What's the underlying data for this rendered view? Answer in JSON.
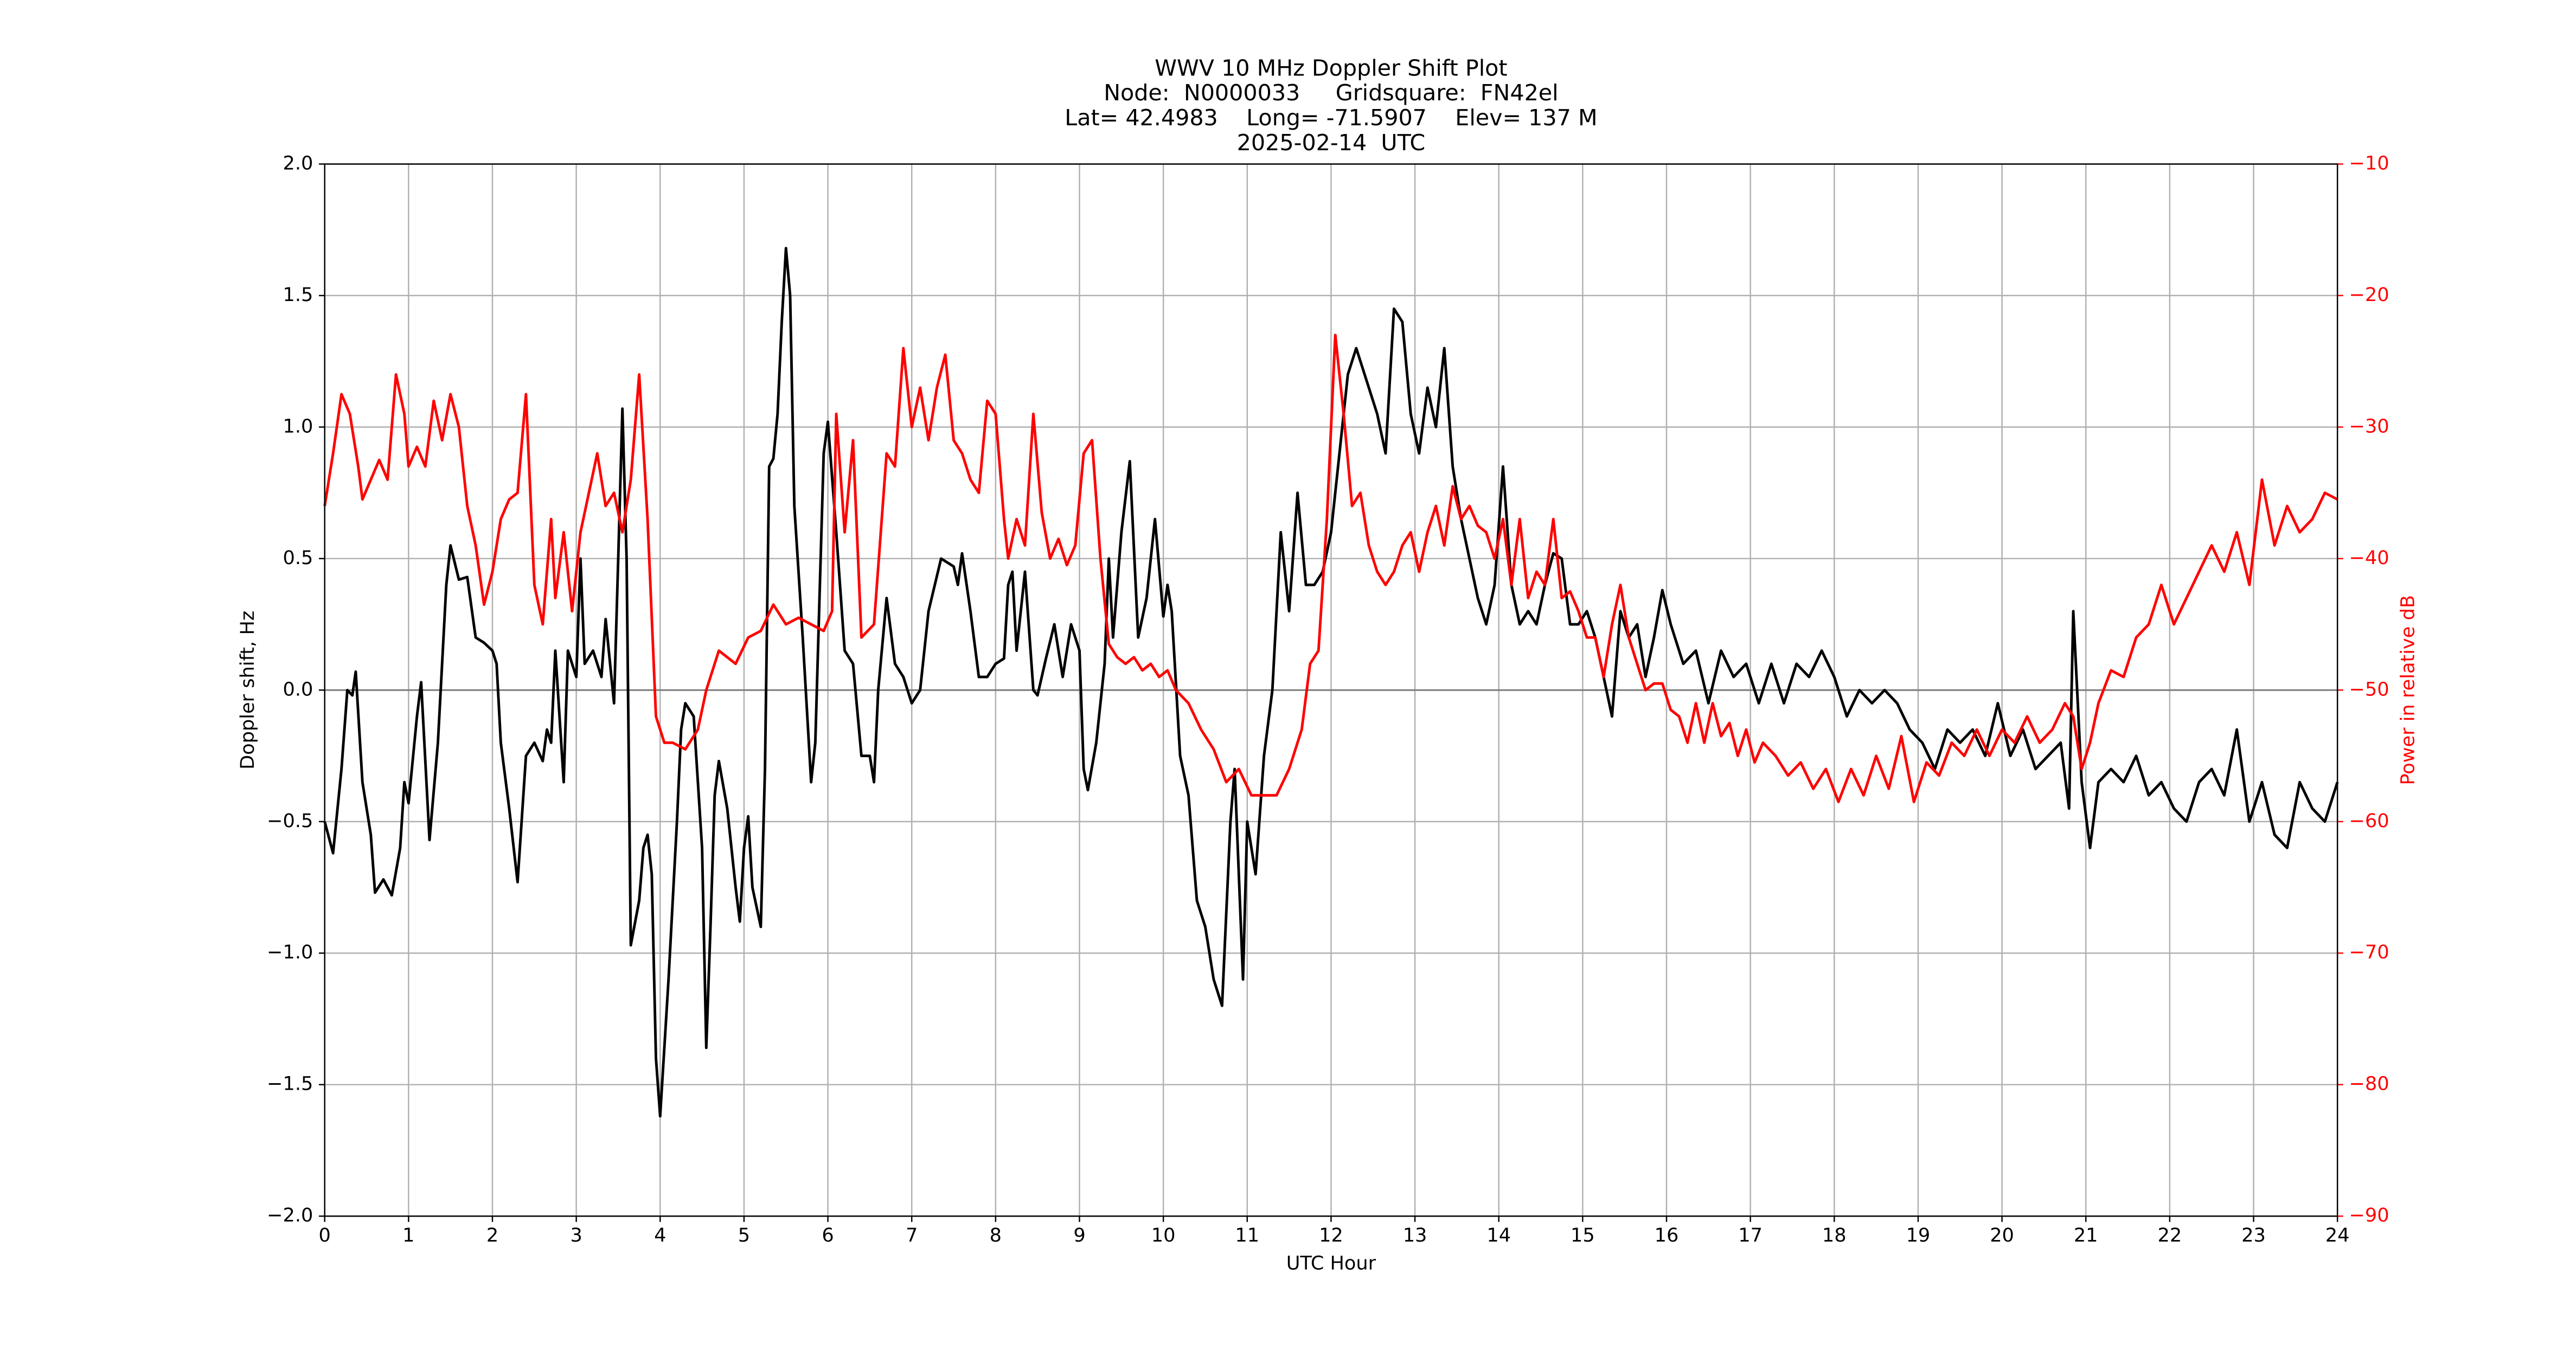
{
  "chart_data": {
    "type": "line",
    "title": [
      "WWV 10 MHz Doppler Shift Plot",
      "Node:  N0000033     Gridsquare:  FN42el",
      "Lat= 42.4983    Long= -71.5907    Elev= 137 M",
      "2025-02-14  UTC"
    ],
    "xlabel": "UTC Hour",
    "ylabel": "Doppler shift, Hz",
    "y2label": "Power in relative dB",
    "xlim": [
      0,
      24
    ],
    "xticks": [
      0,
      1,
      2,
      3,
      4,
      5,
      6,
      7,
      8,
      9,
      10,
      11,
      12,
      13,
      14,
      15,
      16,
      17,
      18,
      19,
      20,
      21,
      22,
      23,
      24
    ],
    "ylim": [
      -2.0,
      2.0
    ],
    "yticks": [
      {
        "value": -2.0,
        "label": "−2.0"
      },
      {
        "value": -1.5,
        "label": "−1.5"
      },
      {
        "value": -1.0,
        "label": "−1.0"
      },
      {
        "value": -0.5,
        "label": "−0.5"
      },
      {
        "value": 0,
        "label": "0.0"
      },
      {
        "value": 0.5,
        "label": "0.5"
      },
      {
        "value": 1.0,
        "label": "1.0"
      },
      {
        "value": 1.5,
        "label": "1.5"
      },
      {
        "value": 2.0,
        "label": "2.0"
      }
    ],
    "y2lim": [
      -90,
      -10
    ],
    "y2ticks": [
      {
        "value": -90,
        "label": "−90"
      },
      {
        "value": -80,
        "label": "−80"
      },
      {
        "value": -70,
        "label": "−70"
      },
      {
        "value": -60,
        "label": "−60"
      },
      {
        "value": -50,
        "label": "−50"
      },
      {
        "value": -40,
        "label": "−40"
      },
      {
        "value": -30,
        "label": "−30"
      },
      {
        "value": -20,
        "label": "−20"
      },
      {
        "value": -10,
        "label": "−10"
      }
    ],
    "grid": true,
    "axhline": 0,
    "y2color": "#ff0000",
    "series": [
      {
        "color": "#000000",
        "axis": "y",
        "x": [
          0,
          0.1,
          0.2,
          0.27,
          0.33,
          0.37,
          0.45,
          0.55,
          0.6,
          0.7,
          0.8,
          0.9,
          0.95,
          1.0,
          1.1,
          1.15,
          1.25,
          1.35,
          1.45,
          1.5,
          1.6,
          1.7,
          1.8,
          1.9,
          2.0,
          2.05,
          2.1,
          2.2,
          2.3,
          2.4,
          2.5,
          2.6,
          2.65,
          2.7,
          2.75,
          2.85,
          2.9,
          3.0,
          3.05,
          3.1,
          3.2,
          3.3,
          3.35,
          3.45,
          3.5,
          3.55,
          3.6,
          3.65,
          3.75,
          3.8,
          3.85,
          3.9,
          3.95,
          4.0,
          4.1,
          4.2,
          4.25,
          4.3,
          4.4,
          4.5,
          4.55,
          4.6,
          4.65,
          4.7,
          4.8,
          4.9,
          4.95,
          5.0,
          5.05,
          5.1,
          5.2,
          5.25,
          5.3,
          5.35,
          5.4,
          5.45,
          5.5,
          5.55,
          5.6,
          5.7,
          5.8,
          5.85,
          5.95,
          6.0,
          6.1,
          6.2,
          6.3,
          6.4,
          6.5,
          6.55,
          6.6,
          6.7,
          6.8,
          6.9,
          7.0,
          7.1,
          7.2,
          7.35,
          7.5,
          7.55,
          7.6,
          7.7,
          7.8,
          7.9,
          8.0,
          8.1,
          8.15,
          8.2,
          8.25,
          8.3,
          8.35,
          8.45,
          8.5,
          8.6,
          8.7,
          8.8,
          8.9,
          9.0,
          9.05,
          9.1,
          9.2,
          9.3,
          9.35,
          9.4,
          9.5,
          9.6,
          9.7,
          9.8,
          9.9,
          10.0,
          10.05,
          10.1,
          10.2,
          10.3,
          10.4,
          10.5,
          10.6,
          10.7,
          10.8,
          10.85,
          10.95,
          11.0,
          11.1,
          11.2,
          11.3,
          11.4,
          11.5,
          11.6,
          11.7,
          11.8,
          11.9,
          12.0,
          12.1,
          12.2,
          12.3,
          12.45,
          12.55,
          12.65,
          12.75,
          12.85,
          12.95,
          13.05,
          13.15,
          13.25,
          13.35,
          13.45,
          13.55,
          13.65,
          13.75,
          13.85,
          13.95,
          14.05,
          14.15,
          14.25,
          14.35,
          14.45,
          14.55,
          14.65,
          14.75,
          14.85,
          14.95,
          15.05,
          15.15,
          15.25,
          15.35,
          15.45,
          15.55,
          15.65,
          15.75,
          15.85,
          15.95,
          16.05,
          16.2,
          16.35,
          16.5,
          16.65,
          16.8,
          16.95,
          17.1,
          17.25,
          17.4,
          17.55,
          17.7,
          17.85,
          18.0,
          18.15,
          18.3,
          18.45,
          18.6,
          18.75,
          18.9,
          19.05,
          19.2,
          19.35,
          19.5,
          19.65,
          19.8,
          19.95,
          20.1,
          20.25,
          20.4,
          20.55,
          20.7,
          20.8,
          20.85,
          20.95,
          21.05,
          21.15,
          21.3,
          21.45,
          21.6,
          21.75,
          21.9,
          22.05,
          22.2,
          22.35,
          22.5,
          22.65,
          22.8,
          22.95,
          23.1,
          23.25,
          23.4,
          23.55,
          23.7,
          23.85,
          24.0
        ],
        "values": [
          -0.5,
          -0.62,
          -0.3,
          0.0,
          -0.02,
          0.07,
          -0.35,
          -0.55,
          -0.77,
          -0.72,
          -0.78,
          -0.6,
          -0.35,
          -0.43,
          -0.1,
          0.03,
          -0.57,
          -0.2,
          0.4,
          0.55,
          0.42,
          0.43,
          0.2,
          0.18,
          0.15,
          0.1,
          -0.2,
          -0.45,
          -0.73,
          -0.25,
          -0.2,
          -0.27,
          -0.15,
          -0.2,
          0.15,
          -0.35,
          0.15,
          0.05,
          0.5,
          0.1,
          0.15,
          0.05,
          0.27,
          -0.05,
          0.5,
          1.07,
          0.5,
          -0.97,
          -0.8,
          -0.6,
          -0.55,
          -0.7,
          -1.4,
          -1.62,
          -1.1,
          -0.5,
          -0.15,
          -0.05,
          -0.1,
          -0.6,
          -1.36,
          -0.9,
          -0.4,
          -0.27,
          -0.45,
          -0.75,
          -0.88,
          -0.6,
          -0.48,
          -0.75,
          -0.9,
          -0.3,
          0.85,
          0.88,
          1.05,
          1.4,
          1.68,
          1.5,
          0.7,
          0.2,
          -0.35,
          -0.2,
          0.9,
          1.02,
          0.6,
          0.15,
          0.1,
          -0.25,
          -0.25,
          -0.35,
          0.0,
          0.35,
          0.1,
          0.05,
          -0.05,
          0.0,
          0.3,
          0.5,
          0.47,
          0.4,
          0.52,
          0.3,
          0.05,
          0.05,
          0.1,
          0.12,
          0.4,
          0.45,
          0.15,
          0.3,
          0.45,
          0.0,
          -0.02,
          0.12,
          0.25,
          0.05,
          0.25,
          0.15,
          -0.3,
          -0.38,
          -0.2,
          0.1,
          0.5,
          0.2,
          0.6,
          0.87,
          0.2,
          0.35,
          0.65,
          0.28,
          0.4,
          0.3,
          -0.25,
          -0.4,
          -0.8,
          -0.9,
          -1.1,
          -1.2,
          -0.5,
          -0.3,
          -1.1,
          -0.5,
          -0.7,
          -0.25,
          0.0,
          0.6,
          0.3,
          0.75,
          0.4,
          0.4,
          0.45,
          0.6,
          0.9,
          1.2,
          1.3,
          1.15,
          1.05,
          0.9,
          1.45,
          1.4,
          1.05,
          0.9,
          1.15,
          1.0,
          1.3,
          0.85,
          0.65,
          0.5,
          0.35,
          0.25,
          0.4,
          0.85,
          0.4,
          0.25,
          0.3,
          0.25,
          0.4,
          0.52,
          0.5,
          0.25,
          0.25,
          0.3,
          0.2,
          0.05,
          -0.1,
          0.3,
          0.2,
          0.25,
          0.05,
          0.2,
          0.38,
          0.25,
          0.1,
          0.15,
          -0.05,
          0.15,
          0.05,
          0.1,
          -0.05,
          0.1,
          -0.05,
          0.1,
          0.05,
          0.15,
          0.05,
          -0.1,
          0.0,
          -0.05,
          0.0,
          -0.05,
          -0.15,
          -0.2,
          -0.3,
          -0.15,
          -0.2,
          -0.15,
          -0.25,
          -0.05,
          -0.25,
          -0.15,
          -0.3,
          -0.25,
          -0.2,
          -0.45,
          0.3,
          -0.35,
          -0.6,
          -0.35,
          -0.3,
          -0.35,
          -0.25,
          -0.4,
          -0.35,
          -0.45,
          -0.5,
          -0.35,
          -0.3,
          -0.4,
          -0.15,
          -0.5,
          -0.35,
          -0.55,
          -0.6,
          -0.35,
          -0.45,
          -0.5,
          -0.35
        ]
      },
      {
        "color": "#ff0000",
        "axis": "y2",
        "x": [
          0,
          0.1,
          0.2,
          0.3,
          0.4,
          0.45,
          0.55,
          0.65,
          0.75,
          0.85,
          0.95,
          1.0,
          1.1,
          1.2,
          1.3,
          1.4,
          1.5,
          1.6,
          1.7,
          1.8,
          1.9,
          2.0,
          2.1,
          2.2,
          2.3,
          2.4,
          2.5,
          2.6,
          2.7,
          2.75,
          2.85,
          2.95,
          3.05,
          3.15,
          3.25,
          3.35,
          3.45,
          3.55,
          3.65,
          3.75,
          3.85,
          3.95,
          4.05,
          4.15,
          4.3,
          4.45,
          4.55,
          4.7,
          4.9,
          5.05,
          5.2,
          5.35,
          5.5,
          5.65,
          5.8,
          5.95,
          6.05,
          6.1,
          6.2,
          6.3,
          6.4,
          6.55,
          6.7,
          6.8,
          6.9,
          7.0,
          7.1,
          7.2,
          7.3,
          7.4,
          7.5,
          7.6,
          7.7,
          7.8,
          7.9,
          8.0,
          8.1,
          8.15,
          8.25,
          8.35,
          8.45,
          8.55,
          8.65,
          8.75,
          8.85,
          8.95,
          9.05,
          9.15,
          9.25,
          9.35,
          9.45,
          9.55,
          9.65,
          9.75,
          9.85,
          9.95,
          10.05,
          10.15,
          10.3,
          10.45,
          10.6,
          10.75,
          10.9,
          11.05,
          11.2,
          11.35,
          11.5,
          11.65,
          11.75,
          11.85,
          11.95,
          12.05,
          12.15,
          12.25,
          12.35,
          12.45,
          12.55,
          12.65,
          12.75,
          12.85,
          12.95,
          13.05,
          13.15,
          13.25,
          13.35,
          13.45,
          13.55,
          13.65,
          13.75,
          13.85,
          13.95,
          14.05,
          14.15,
          14.25,
          14.35,
          14.45,
          14.55,
          14.65,
          14.75,
          14.85,
          14.95,
          15.05,
          15.15,
          15.25,
          15.35,
          15.45,
          15.55,
          15.65,
          15.75,
          15.85,
          15.95,
          16.05,
          16.15,
          16.25,
          16.35,
          16.45,
          16.55,
          16.65,
          16.75,
          16.85,
          16.95,
          17.05,
          17.15,
          17.3,
          17.45,
          17.6,
          17.75,
          17.9,
          18.05,
          18.2,
          18.35,
          18.5,
          18.65,
          18.8,
          18.95,
          19.1,
          19.25,
          19.4,
          19.55,
          19.7,
          19.85,
          20.0,
          20.15,
          20.3,
          20.45,
          20.6,
          20.75,
          20.85,
          20.95,
          21.05,
          21.15,
          21.3,
          21.45,
          21.6,
          21.75,
          21.9,
          22.05,
          22.2,
          22.35,
          22.5,
          22.65,
          22.8,
          22.95,
          23.1,
          23.25,
          23.4,
          23.55,
          23.7,
          23.85,
          24.0
        ],
        "values": [
          -36,
          -32,
          -27.5,
          -29,
          -33,
          -35.5,
          -34,
          -32.5,
          -34,
          -26,
          -29,
          -33,
          -31.5,
          -33,
          -28,
          -31,
          -27.5,
          -30,
          -36,
          -39,
          -43.5,
          -41,
          -37,
          -35.5,
          -35,
          -27.5,
          -42,
          -45,
          -37,
          -43,
          -38,
          -44,
          -38,
          -35,
          -32,
          -36,
          -35,
          -38,
          -34,
          -26,
          -37,
          -52,
          -54,
          -54,
          -54.5,
          -53,
          -50,
          -47,
          -48,
          -46,
          -45.5,
          -43.5,
          -45,
          -44.5,
          -45,
          -45.5,
          -44,
          -29,
          -38,
          -31,
          -46,
          -45,
          -32,
          -33,
          -24,
          -30,
          -27,
          -31,
          -27,
          -24.5,
          -31,
          -32,
          -34,
          -35,
          -28,
          -29,
          -37,
          -40,
          -37,
          -39,
          -29,
          -36.5,
          -40,
          -38.5,
          -40.5,
          -39,
          -32,
          -31,
          -40,
          -46.5,
          -47.5,
          -48,
          -47.5,
          -48.5,
          -48,
          -49,
          -48.5,
          -50,
          -51,
          -53,
          -54.5,
          -57,
          -56,
          -58,
          -58,
          -58,
          -56,
          -53,
          -48,
          -47,
          -37,
          -23,
          -29,
          -36,
          -35,
          -39,
          -41,
          -42,
          -41,
          -39,
          -38,
          -41,
          -38,
          -36,
          -39,
          -34.5,
          -37,
          -36,
          -37.5,
          -38,
          -40,
          -37,
          -42,
          -37,
          -43,
          -41,
          -42,
          -37,
          -43,
          -42.5,
          -44,
          -46,
          -46,
          -49,
          -45,
          -42,
          -46,
          -48,
          -50,
          -49.5,
          -49.5,
          -51.5,
          -52,
          -54,
          -51,
          -54,
          -51,
          -53.5,
          -52.5,
          -55,
          -53,
          -55.5,
          -54,
          -55,
          -56.5,
          -55.5,
          -57.5,
          -56,
          -58.5,
          -56,
          -58,
          -55,
          -57.5,
          -53.5,
          -58.5,
          -55.5,
          -56.5,
          -54,
          -55,
          -53,
          -55,
          -53,
          -54,
          -52,
          -54,
          -53,
          -51,
          -52,
          -56,
          -54,
          -51,
          -48.5,
          -49,
          -46,
          -45,
          -42,
          -45,
          -43,
          -41,
          -39,
          -41,
          -38,
          -42,
          -34,
          -39,
          -36,
          -38,
          -37,
          -35,
          -35.5
        ]
      }
    ]
  }
}
